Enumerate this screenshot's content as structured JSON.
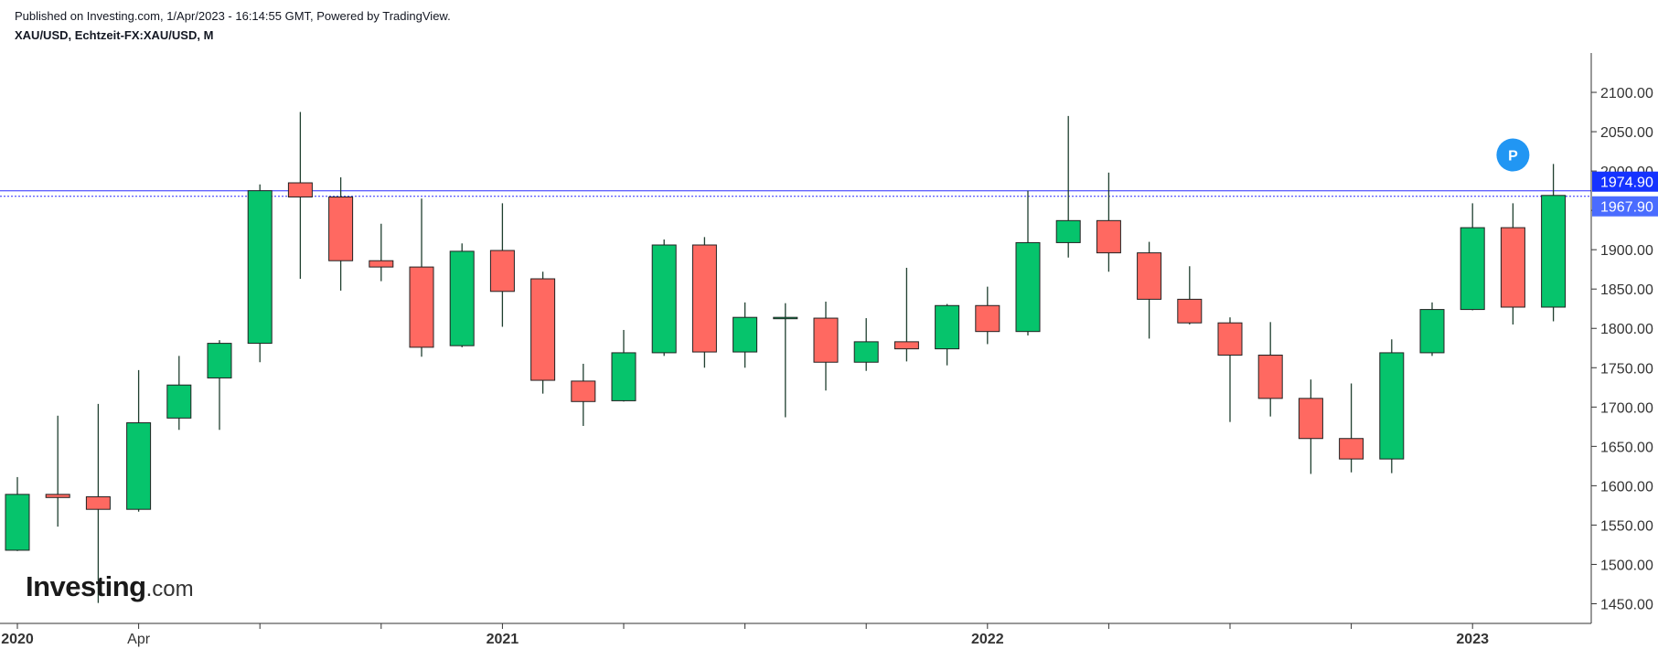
{
  "header": {
    "published": "Published on Investing.com, 1/Apr/2023 - 16:14:55 GMT, Powered by TradingView.",
    "symbol": "XAU/USD, Echtzeit-FX:XAU/USD, M"
  },
  "logo": {
    "bold": "Investing",
    "light": ".com"
  },
  "marker": {
    "label": "P",
    "color": "#2196f3"
  },
  "colors": {
    "up": "#06c46c",
    "down": "#ff6961",
    "wick": "#1f3f2f",
    "line": "#2b2bff",
    "axis": "#333333"
  },
  "chart_data": {
    "type": "candlestick",
    "timeframe": "M",
    "ylim": [
      1425,
      2150
    ],
    "y_ticks": [
      1450,
      1500,
      1550,
      1600,
      1650,
      1700,
      1750,
      1800,
      1850,
      1900,
      1950,
      2000,
      2050,
      2100
    ],
    "y_tick_labels": [
      "1450.00",
      "1500.00",
      "1550.00",
      "1600.00",
      "1650.00",
      "1700.00",
      "1750.00",
      "1800.00",
      "1850.00",
      "1900.00",
      "1950.00",
      "2000.00",
      "2050.00",
      "2100.00"
    ],
    "x_labels": [
      {
        "label": "2020",
        "index": 0,
        "year": true
      },
      {
        "label": "Apr",
        "index": 3,
        "year": false
      },
      {
        "label": "2021",
        "index": 12,
        "year": true
      },
      {
        "label": "2022",
        "index": 24,
        "year": true
      },
      {
        "label": "2023",
        "index": 36,
        "year": true
      }
    ],
    "price_labels": [
      {
        "value": 1974.9,
        "text": "1974.90",
        "color": "#1533ff"
      },
      {
        "value": 1967.9,
        "text": "1967.90",
        "color": "#4a6cff"
      }
    ],
    "marker_point": {
      "index": 37,
      "value": 2003
    },
    "candles": [
      {
        "month": "2020-01",
        "open": 1518,
        "high": 1611,
        "low": 1517,
        "close": 1589
      },
      {
        "month": "2020-02",
        "open": 1589,
        "high": 1689,
        "low": 1548,
        "close": 1585
      },
      {
        "month": "2020-03",
        "open": 1586,
        "high": 1704,
        "low": 1451,
        "close": 1570
      },
      {
        "month": "2020-04",
        "open": 1570,
        "high": 1747,
        "low": 1567,
        "close": 1680
      },
      {
        "month": "2020-05",
        "open": 1686,
        "high": 1765,
        "low": 1671,
        "close": 1728
      },
      {
        "month": "2020-06",
        "open": 1737,
        "high": 1785,
        "low": 1671,
        "close": 1781
      },
      {
        "month": "2020-07",
        "open": 1781,
        "high": 1983,
        "low": 1757,
        "close": 1975
      },
      {
        "month": "2020-08",
        "open": 1985,
        "high": 2075,
        "low": 1863,
        "close": 1967
      },
      {
        "month": "2020-09",
        "open": 1967,
        "high": 1992,
        "low": 1848,
        "close": 1886
      },
      {
        "month": "2020-10",
        "open": 1886,
        "high": 1933,
        "low": 1860,
        "close": 1878
      },
      {
        "month": "2020-11",
        "open": 1878,
        "high": 1965,
        "low": 1764,
        "close": 1776
      },
      {
        "month": "2020-12",
        "open": 1778,
        "high": 1908,
        "low": 1776,
        "close": 1898
      },
      {
        "month": "2021-01",
        "open": 1899,
        "high": 1959,
        "low": 1802,
        "close": 1847
      },
      {
        "month": "2021-02",
        "open": 1863,
        "high": 1872,
        "low": 1717,
        "close": 1734
      },
      {
        "month": "2021-03",
        "open": 1733,
        "high": 1755,
        "low": 1676,
        "close": 1707
      },
      {
        "month": "2021-04",
        "open": 1708,
        "high": 1798,
        "low": 1707,
        "close": 1769
      },
      {
        "month": "2021-05",
        "open": 1769,
        "high": 1913,
        "low": 1765,
        "close": 1906
      },
      {
        "month": "2021-06",
        "open": 1906,
        "high": 1916,
        "low": 1750,
        "close": 1770
      },
      {
        "month": "2021-07",
        "open": 1770,
        "high": 1833,
        "low": 1750,
        "close": 1814
      },
      {
        "month": "2021-08",
        "open": 1814,
        "high": 1832,
        "low": 1687,
        "close": 1814
      },
      {
        "month": "2021-09",
        "open": 1813,
        "high": 1834,
        "low": 1721,
        "close": 1757
      },
      {
        "month": "2021-10",
        "open": 1757,
        "high": 1813,
        "low": 1746,
        "close": 1783
      },
      {
        "month": "2021-11",
        "open": 1783,
        "high": 1877,
        "low": 1758,
        "close": 1774
      },
      {
        "month": "2021-12",
        "open": 1774,
        "high": 1831,
        "low": 1753,
        "close": 1829
      },
      {
        "month": "2022-01",
        "open": 1829,
        "high": 1853,
        "low": 1780,
        "close": 1796
      },
      {
        "month": "2022-02",
        "open": 1796,
        "high": 1975,
        "low": 1791,
        "close": 1909
      },
      {
        "month": "2022-03",
        "open": 1909,
        "high": 2070,
        "low": 1890,
        "close": 1937
      },
      {
        "month": "2022-04",
        "open": 1937,
        "high": 1998,
        "low": 1872,
        "close": 1896
      },
      {
        "month": "2022-05",
        "open": 1896,
        "high": 1910,
        "low": 1787,
        "close": 1837
      },
      {
        "month": "2022-06",
        "open": 1837,
        "high": 1879,
        "low": 1805,
        "close": 1807
      },
      {
        "month": "2022-07",
        "open": 1807,
        "high": 1814,
        "low": 1681,
        "close": 1766
      },
      {
        "month": "2022-08",
        "open": 1766,
        "high": 1808,
        "low": 1688,
        "close": 1711
      },
      {
        "month": "2022-09",
        "open": 1711,
        "high": 1735,
        "low": 1615,
        "close": 1660
      },
      {
        "month": "2022-10",
        "open": 1660,
        "high": 1730,
        "low": 1617,
        "close": 1634
      },
      {
        "month": "2022-11",
        "open": 1634,
        "high": 1786,
        "low": 1616,
        "close": 1769
      },
      {
        "month": "2022-12",
        "open": 1769,
        "high": 1833,
        "low": 1765,
        "close": 1824
      },
      {
        "month": "2023-01",
        "open": 1824,
        "high": 1959,
        "low": 1823,
        "close": 1928
      },
      {
        "month": "2023-02",
        "open": 1928,
        "high": 1959,
        "low": 1805,
        "close": 1827
      },
      {
        "month": "2023-03",
        "open": 1827,
        "high": 2009,
        "low": 1809,
        "close": 1969
      }
    ]
  }
}
